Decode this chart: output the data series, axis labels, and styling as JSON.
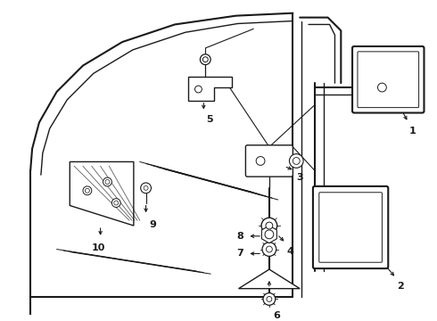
{
  "bg_color": "#ffffff",
  "line_color": "#1a1a1a",
  "fig_width": 4.9,
  "fig_height": 3.6,
  "dpi": 100,
  "lw": 1.0,
  "lw_thick": 1.5
}
